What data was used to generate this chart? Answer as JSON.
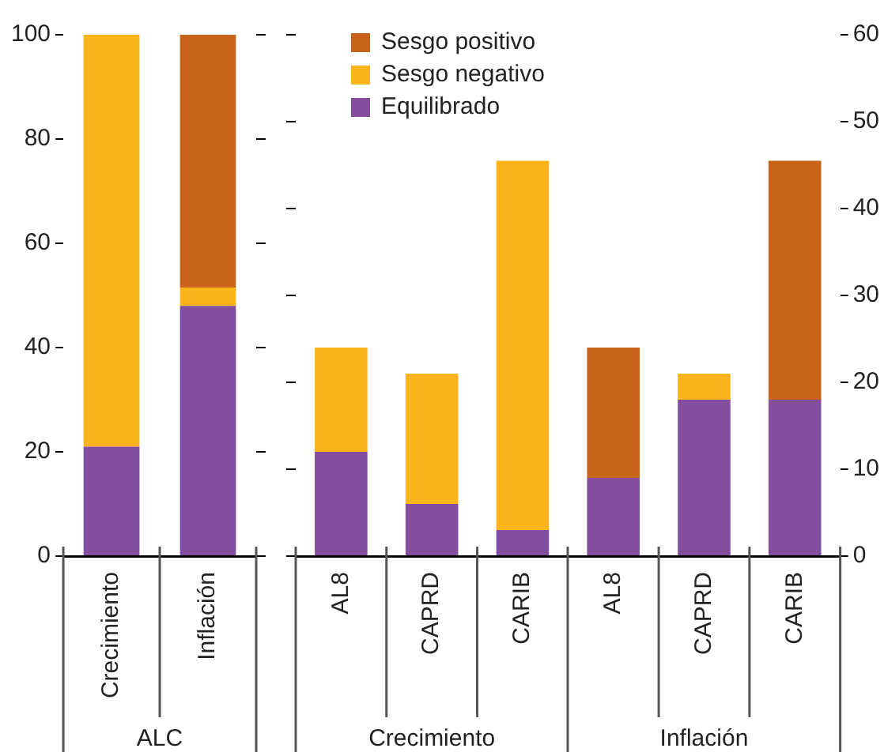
{
  "chart_data": [
    {
      "type": "bar",
      "stacked": true,
      "categories": [
        "Crecimiento",
        "Inflación"
      ],
      "annotations": [
        "ALC"
      ],
      "ylim": [
        0,
        100
      ],
      "yticks": [
        0,
        20,
        40,
        60,
        80,
        100
      ],
      "legend": false,
      "grid": false,
      "series": [
        {
          "color": "#834e9e",
          "values": [
            21,
            48
          ]
        },
        {
          "color": "#fbb41c",
          "values": [
            79,
            3.5
          ]
        },
        {
          "color": "#c8641a",
          "values": [
            0,
            48.5
          ]
        }
      ]
    },
    {
      "type": "bar",
      "stacked": true,
      "categories": [
        "AL8",
        "CAPRD",
        "CARIB",
        "AL8",
        "CAPRD",
        "CARIB"
      ],
      "annotations": [
        "Crecimiento",
        "Inflación"
      ],
      "y2lim": [
        0,
        60
      ],
      "y2ticks": [
        0,
        10,
        20,
        30,
        40,
        50,
        60
      ],
      "legend": "top left",
      "grid": false,
      "series": [
        {
          "name": "Equilibrado",
          "color": "#834e9e",
          "axis": "y2",
          "values": [
            12,
            6,
            3,
            9,
            18,
            18
          ]
        },
        {
          "name": "Sesgo negativo",
          "color": "#fbb41c",
          "axis": "y2",
          "values": [
            12,
            15,
            42.5,
            0,
            3,
            0
          ]
        },
        {
          "name": "Sesgo positivo",
          "color": "#c8641a",
          "axis": "y2",
          "values": [
            0,
            0,
            0,
            15,
            0,
            27.5
          ]
        }
      ]
    }
  ]
}
